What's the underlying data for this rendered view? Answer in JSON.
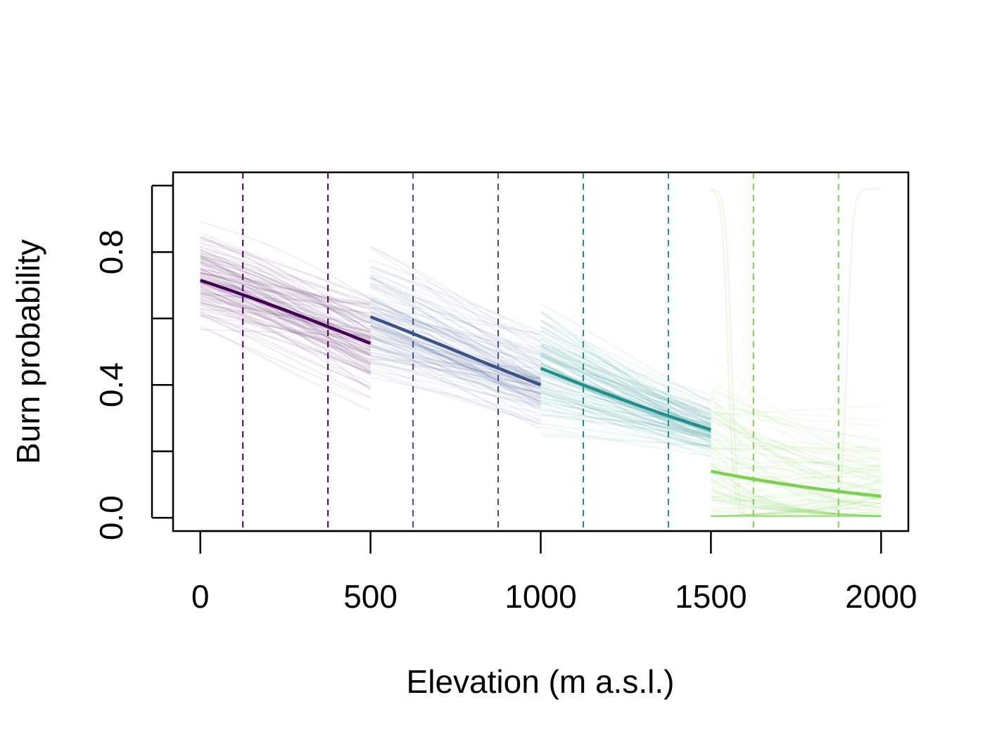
{
  "chart_data": {
    "type": "line",
    "title": "",
    "xlabel": "Elevation (m a.s.l.)",
    "ylabel": "Burn probability",
    "xlim": [
      -80,
      2080
    ],
    "ylim": [
      -0.04,
      1.04
    ],
    "x_ticks": [
      0,
      500,
      1000,
      1500,
      2000
    ],
    "x_tick_labels": [
      "0",
      "500",
      "1000",
      "1500",
      "2000"
    ],
    "y_ticks": [
      0.0,
      0.2,
      0.4,
      0.6,
      0.8,
      1.0
    ],
    "y_tick_labels": [
      "0.0",
      "",
      "0.4",
      "",
      "0.8",
      ""
    ],
    "grid": false,
    "legend": "none",
    "series": [
      {
        "color": "#440154",
        "x": [
          0,
          500
        ],
        "y": [
          0.715,
          0.525
        ],
        "quantile_lines": [
          125,
          375
        ],
        "sample_band": {
          "start": [
            0.44,
            0.89
          ],
          "end": [
            0.22,
            0.9
          ]
        }
      },
      {
        "color": "#3B528B",
        "x": [
          500,
          1000
        ],
        "y": [
          0.605,
          0.4
        ],
        "quantile_lines": [
          625,
          875
        ],
        "sample_band": {
          "start": [
            0.27,
            0.83
          ],
          "end": [
            0.14,
            0.76
          ]
        }
      },
      {
        "color": "#21908C",
        "x": [
          1000,
          1500
        ],
        "y": [
          0.45,
          0.265
        ],
        "quantile_lines": [
          1125,
          1375
        ],
        "sample_band": {
          "start": [
            0.17,
            0.72
          ],
          "end": [
            0.14,
            0.52
          ]
        }
      },
      {
        "color": "#7AD151",
        "x": [
          1500,
          2000
        ],
        "y": [
          0.14,
          0.065
        ],
        "quantile_lines": [
          1625,
          1875
        ],
        "sample_band": {
          "start": [
            0.01,
            0.99
          ],
          "end": [
            0.0,
            0.99
          ]
        }
      }
    ]
  }
}
